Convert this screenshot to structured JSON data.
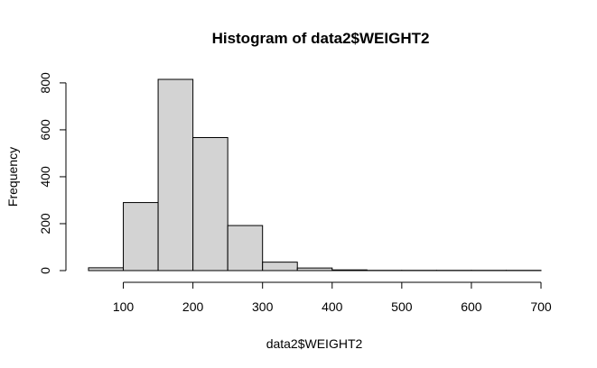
{
  "chart_data": {
    "type": "bar",
    "title": "Histogram of data2$WEIGHT2",
    "xlabel": "data2$WEIGHT2",
    "ylabel": "Frequency",
    "bins": [
      {
        "from": 50,
        "to": 100,
        "count": 12
      },
      {
        "from": 100,
        "to": 150,
        "count": 290
      },
      {
        "from": 150,
        "to": 200,
        "count": 815
      },
      {
        "from": 200,
        "to": 250,
        "count": 567
      },
      {
        "from": 250,
        "to": 300,
        "count": 192
      },
      {
        "from": 300,
        "to": 350,
        "count": 36
      },
      {
        "from": 350,
        "to": 400,
        "count": 11
      },
      {
        "from": 400,
        "to": 450,
        "count": 3
      },
      {
        "from": 450,
        "to": 500,
        "count": 1
      },
      {
        "from": 500,
        "to": 550,
        "count": 1
      },
      {
        "from": 550,
        "to": 600,
        "count": 1
      },
      {
        "from": 600,
        "to": 650,
        "count": 1
      },
      {
        "from": 650,
        "to": 700,
        "count": 1
      }
    ],
    "xlim": [
      50,
      700
    ],
    "ylim": [
      0,
      815
    ],
    "xticks": [
      "100",
      "200",
      "300",
      "400",
      "500",
      "600",
      "700"
    ],
    "yticks": [
      "0",
      "200",
      "400",
      "600",
      "800"
    ],
    "bar_color": "#d3d3d3",
    "grid": false
  }
}
